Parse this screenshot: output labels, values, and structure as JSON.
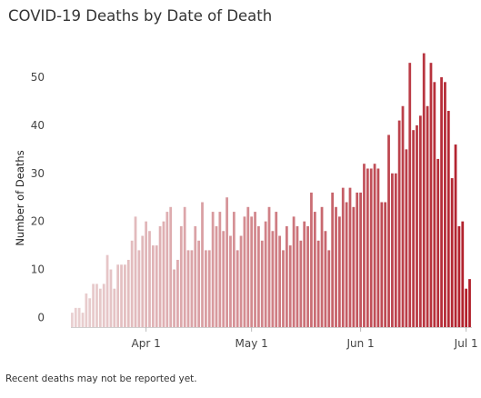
{
  "chart_data": {
    "type": "bar",
    "title": "COVID-19 Deaths by Date of Death",
    "ylabel": "Number of Deaths",
    "xlabel": "",
    "note": "Recent deaths may not be reported yet.",
    "start_date": "2020-03-11",
    "x_ticks": [
      "Apr 1",
      "May 1",
      "Jun 1",
      "Jul 1"
    ],
    "x_tick_dates": [
      "2020-04-01",
      "2020-05-01",
      "2020-06-01",
      "2020-07-01"
    ],
    "y_ticks": [
      0,
      10,
      20,
      30,
      40,
      50
    ],
    "ylim": [
      -2,
      57
    ],
    "grid": false,
    "legend": "none",
    "color_encoding": "by date (light pink to dark red)",
    "values": [
      1,
      2,
      2,
      1,
      5,
      4,
      7,
      7,
      6,
      7,
      13,
      10,
      6,
      11,
      11,
      11,
      12,
      16,
      21,
      14,
      17,
      20,
      18,
      15,
      15,
      19,
      20,
      22,
      23,
      10,
      12,
      19,
      23,
      14,
      14,
      19,
      16,
      24,
      14,
      14,
      22,
      19,
      22,
      18,
      25,
      17,
      22,
      14,
      17,
      21,
      23,
      21,
      22,
      19,
      16,
      20,
      23,
      18,
      22,
      17,
      14,
      19,
      15,
      21,
      19,
      16,
      20,
      19,
      26,
      22,
      16,
      23,
      18,
      14,
      26,
      23,
      21,
      27,
      24,
      27,
      23,
      26,
      26,
      32,
      31,
      31,
      32,
      31,
      24,
      24,
      38,
      30,
      30,
      41,
      44,
      35,
      53,
      39,
      40,
      42,
      55,
      44,
      53,
      49,
      33,
      50,
      49,
      43,
      29,
      36,
      19,
      20,
      6,
      8
    ]
  }
}
